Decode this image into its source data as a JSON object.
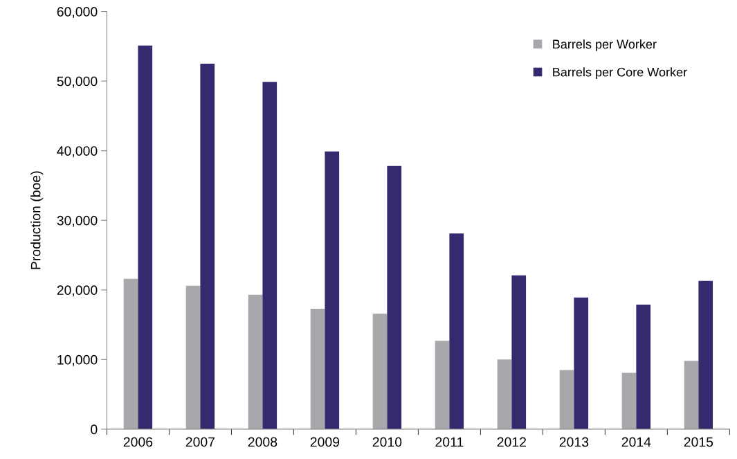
{
  "chart_data": {
    "type": "bar",
    "ylabel": "Production (boe)",
    "categories": [
      "2006",
      "2007",
      "2008",
      "2009",
      "2010",
      "2011",
      "2012",
      "2013",
      "2014",
      "2015"
    ],
    "series": [
      {
        "name": "Barrels per Worker",
        "color": "#a7a8ac",
        "values": [
          21600,
          20600,
          19300,
          17300,
          16600,
          12700,
          10000,
          8500,
          8100,
          9800
        ]
      },
      {
        "name": "Barrels per Core Worker",
        "color": "#342a6e",
        "values": [
          55100,
          52500,
          49900,
          39900,
          37800,
          28100,
          22100,
          18900,
          17900,
          21300
        ]
      }
    ],
    "ylim": [
      0,
      60000
    ],
    "yticks": [
      {
        "value": 0,
        "label": "0"
      },
      {
        "value": 10000,
        "label": "10,000"
      },
      {
        "value": 20000,
        "label": "20,000"
      },
      {
        "value": 30000,
        "label": "30,000"
      },
      {
        "value": 40000,
        "label": "40,000"
      },
      {
        "value": 50000,
        "label": "50,000"
      },
      {
        "value": 60000,
        "label": "60,000"
      }
    ],
    "grid": false,
    "legend": "top right"
  }
}
